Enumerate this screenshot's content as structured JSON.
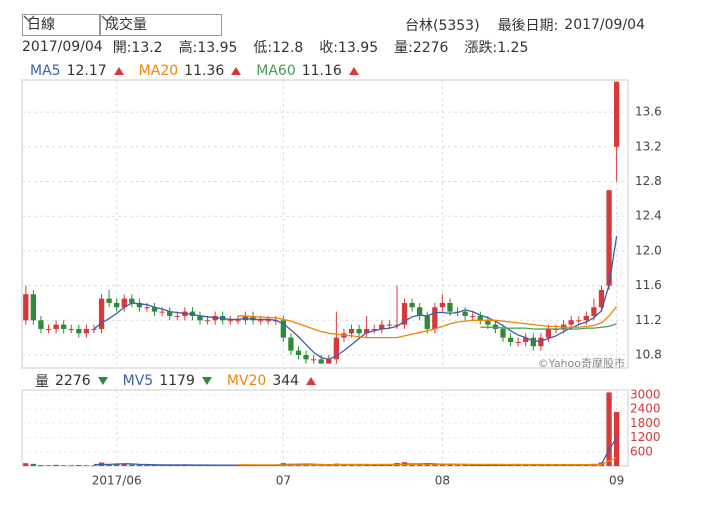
{
  "header": {
    "interval": "日線",
    "indicator": "成交量",
    "stock": "台林(5353)",
    "date_label": "最後日期:",
    "date": "2017/09/04"
  },
  "info": {
    "date": "2017/09/04",
    "items": [
      {
        "label": "開:",
        "value": 13.2
      },
      {
        "label": "高:",
        "value": 13.95
      },
      {
        "label": "低:",
        "value": 12.8
      },
      {
        "label": "收:",
        "value": 13.95
      },
      {
        "label": "量:",
        "value": 2276
      },
      {
        "label": "漲跌:",
        "value": 1.25
      }
    ]
  },
  "chart_data": {
    "type": "candlestick",
    "watermark": "©Yahoo奇摩股市",
    "up_color": "#d9383a",
    "down_color": "#2e8b3a",
    "grid": true,
    "categories": [
      null,
      null,
      null,
      null,
      null,
      null,
      null,
      null,
      null,
      null,
      null,
      null,
      "2017/06",
      null,
      null,
      null,
      null,
      null,
      null,
      null,
      null,
      null,
      null,
      null,
      null,
      null,
      null,
      null,
      null,
      null,
      null,
      null,
      null,
      null,
      "07",
      null,
      null,
      null,
      null,
      null,
      null,
      null,
      null,
      null,
      null,
      null,
      null,
      null,
      null,
      null,
      null,
      null,
      null,
      null,
      null,
      "08",
      null,
      null,
      null,
      null,
      null,
      null,
      null,
      null,
      null,
      null,
      null,
      null,
      null,
      null,
      null,
      null,
      null,
      null,
      null,
      null,
      null,
      null,
      "09"
    ],
    "open": [
      11.2,
      11.5,
      11.2,
      11.1,
      11.1,
      11.15,
      11.1,
      11.1,
      11.05,
      11.1,
      11.1,
      11.45,
      11.4,
      11.35,
      11.45,
      11.4,
      11.35,
      11.35,
      11.3,
      11.3,
      11.25,
      11.25,
      11.3,
      11.25,
      11.2,
      11.2,
      11.25,
      11.2,
      11.2,
      11.2,
      11.25,
      11.2,
      11.2,
      11.2,
      11.2,
      11.0,
      10.85,
      10.8,
      10.75,
      10.75,
      10.7,
      10.75,
      11.0,
      11.05,
      11.1,
      11.05,
      11.1,
      11.1,
      11.15,
      11.15,
      11.15,
      11.4,
      11.35,
      11.25,
      11.1,
      11.35,
      11.4,
      11.3,
      11.3,
      11.25,
      11.25,
      11.2,
      11.15,
      11.1,
      11.0,
      10.95,
      10.95,
      11.0,
      10.9,
      11.0,
      11.1,
      11.1,
      11.15,
      11.2,
      11.2,
      11.25,
      11.35,
      11.6,
      13.2
    ],
    "high": [
      11.6,
      11.55,
      11.25,
      11.15,
      11.2,
      11.2,
      11.15,
      11.15,
      11.15,
      11.15,
      11.5,
      11.55,
      11.45,
      11.5,
      11.5,
      11.45,
      11.4,
      11.4,
      11.35,
      11.35,
      11.3,
      11.35,
      11.35,
      11.3,
      11.25,
      11.3,
      11.3,
      11.25,
      11.25,
      11.3,
      11.3,
      11.25,
      11.25,
      11.25,
      11.25,
      11.05,
      10.9,
      10.85,
      10.8,
      10.8,
      10.8,
      11.3,
      11.1,
      11.15,
      11.15,
      11.25,
      11.15,
      11.2,
      11.2,
      11.6,
      11.45,
      11.45,
      11.4,
      11.3,
      11.4,
      11.5,
      11.45,
      11.35,
      11.35,
      11.3,
      11.3,
      11.25,
      11.2,
      11.15,
      11.05,
      11.0,
      11.05,
      11.05,
      11.05,
      11.15,
      11.15,
      11.2,
      11.25,
      11.25,
      11.3,
      11.45,
      11.6,
      12.7,
      13.95
    ],
    "low": [
      11.15,
      11.15,
      11.05,
      11.05,
      11.05,
      11.05,
      11.05,
      11.0,
      11.0,
      11.05,
      11.05,
      11.35,
      11.3,
      11.3,
      11.35,
      11.3,
      11.3,
      11.25,
      11.25,
      11.2,
      11.2,
      11.2,
      11.2,
      11.15,
      11.15,
      11.15,
      11.15,
      11.15,
      11.15,
      11.15,
      11.15,
      11.15,
      11.15,
      11.15,
      10.95,
      10.8,
      10.75,
      10.7,
      10.7,
      10.7,
      10.7,
      10.7,
      10.95,
      11.0,
      11.0,
      11.0,
      11.05,
      11.05,
      11.1,
      11.1,
      11.1,
      11.3,
      11.2,
      11.05,
      11.05,
      11.3,
      11.25,
      11.25,
      11.2,
      11.2,
      11.15,
      11.1,
      11.05,
      10.95,
      10.9,
      10.9,
      10.9,
      10.85,
      10.85,
      10.95,
      11.05,
      11.05,
      11.1,
      11.15,
      11.15,
      11.2,
      11.3,
      11.55,
      12.8
    ],
    "close": [
      11.5,
      11.2,
      11.1,
      11.1,
      11.15,
      11.1,
      11.1,
      11.05,
      11.1,
      11.1,
      11.45,
      11.4,
      11.35,
      11.45,
      11.4,
      11.35,
      11.35,
      11.3,
      11.3,
      11.25,
      11.25,
      11.3,
      11.25,
      11.2,
      11.2,
      11.25,
      11.2,
      11.2,
      11.2,
      11.25,
      11.2,
      11.2,
      11.2,
      11.2,
      11.0,
      10.85,
      10.8,
      10.75,
      10.75,
      10.7,
      10.75,
      11.0,
      11.05,
      11.1,
      11.05,
      11.1,
      11.1,
      11.15,
      11.15,
      11.15,
      11.4,
      11.35,
      11.25,
      11.1,
      11.35,
      11.4,
      11.3,
      11.3,
      11.25,
      11.25,
      11.2,
      11.15,
      11.1,
      11.0,
      10.95,
      10.95,
      11.0,
      10.9,
      11.0,
      11.1,
      11.1,
      11.15,
      11.2,
      11.2,
      11.25,
      11.35,
      11.55,
      12.7,
      13.95
    ],
    "ma": [
      {
        "name": "MA5",
        "color": "#3b5eab",
        "trend": "up",
        "values": [
          null,
          null,
          null,
          null,
          null,
          null,
          null,
          null,
          null,
          11.1,
          11.17,
          11.22,
          11.28,
          11.35,
          11.4,
          11.39,
          11.38,
          11.35,
          11.33,
          11.3,
          11.29,
          11.28,
          11.27,
          11.25,
          11.24,
          11.23,
          11.22,
          11.21,
          11.21,
          11.22,
          11.21,
          11.21,
          11.21,
          11.2,
          11.16,
          11.09,
          11.01,
          10.92,
          10.83,
          10.77,
          10.75,
          10.79,
          10.85,
          10.92,
          10.99,
          11.06,
          11.08,
          11.1,
          11.11,
          11.13,
          11.19,
          11.24,
          11.26,
          11.25,
          11.29,
          11.29,
          11.28,
          11.29,
          11.32,
          11.3,
          11.26,
          11.23,
          11.19,
          11.14,
          11.08,
          11.03,
          11.0,
          10.96,
          10.96,
          10.99,
          11.02,
          11.07,
          11.11,
          11.15,
          11.18,
          11.23,
          11.31,
          11.61,
          12.17
        ]
      },
      {
        "name": "MA20",
        "color": "#f0850a",
        "trend": "up",
        "values": [
          null,
          null,
          null,
          null,
          null,
          null,
          null,
          null,
          null,
          null,
          null,
          null,
          null,
          null,
          null,
          null,
          null,
          null,
          null,
          null,
          null,
          null,
          null,
          null,
          null,
          null,
          null,
          null,
          11.25,
          11.25,
          11.24,
          11.24,
          11.23,
          11.23,
          11.21,
          11.19,
          11.16,
          11.13,
          11.1,
          11.07,
          11.05,
          11.04,
          11.03,
          11.02,
          11.01,
          11.0,
          11.0,
          11.0,
          11.0,
          11.0,
          11.02,
          11.04,
          11.06,
          11.08,
          11.1,
          11.13,
          11.16,
          11.18,
          11.19,
          11.2,
          11.2,
          11.2,
          11.2,
          11.19,
          11.18,
          11.17,
          11.16,
          11.15,
          11.14,
          11.13,
          11.13,
          11.12,
          11.12,
          11.12,
          11.13,
          11.14,
          11.17,
          11.25,
          11.36
        ]
      },
      {
        "name": "MA60",
        "color": "#4a9a5a",
        "trend": "up",
        "values": [
          null,
          null,
          null,
          null,
          null,
          null,
          null,
          null,
          null,
          null,
          null,
          null,
          null,
          null,
          null,
          null,
          null,
          null,
          null,
          null,
          null,
          null,
          null,
          null,
          null,
          null,
          null,
          null,
          null,
          null,
          null,
          null,
          null,
          null,
          null,
          null,
          null,
          null,
          null,
          null,
          null,
          null,
          null,
          null,
          null,
          null,
          null,
          null,
          null,
          null,
          null,
          null,
          null,
          null,
          null,
          null,
          null,
          null,
          null,
          null,
          11.12,
          11.12,
          11.12,
          11.11,
          11.11,
          11.11,
          11.11,
          11.1,
          11.1,
          11.1,
          11.1,
          11.1,
          11.1,
          11.1,
          11.11,
          11.11,
          11.12,
          11.13,
          11.16
        ]
      }
    ],
    "ylim": [
      10.65,
      13.97
    ],
    "yticks": [
      10.8,
      11.2,
      11.6,
      {
        "value": 12,
        "label": "12.0"
      },
      12.4,
      12.8,
      13.2,
      13.6
    ],
    "volume": {
      "type": "bar",
      "name": "量",
      "trend": "down",
      "values": [
        120,
        90,
        40,
        30,
        50,
        30,
        30,
        40,
        30,
        30,
        150,
        80,
        90,
        70,
        60,
        50,
        40,
        40,
        50,
        40,
        50,
        40,
        30,
        40,
        30,
        40,
        30,
        30,
        40,
        40,
        30,
        30,
        40,
        30,
        120,
        90,
        70,
        60,
        40,
        50,
        40,
        100,
        60,
        50,
        40,
        60,
        40,
        50,
        40,
        130,
        160,
        70,
        60,
        80,
        90,
        70,
        60,
        40,
        40,
        30,
        40,
        50,
        60,
        70,
        60,
        50,
        40,
        60,
        50,
        60,
        40,
        50,
        50,
        40,
        50,
        90,
        150,
        3100,
        2276
      ],
      "series": [
        {
          "name": "MV5",
          "color": "#3b5eab",
          "trend": "down",
          "values": [
            null,
            null,
            null,
            null,
            null,
            null,
            null,
            null,
            null,
            60,
            60,
            70,
            85,
            95,
            90,
            70,
            60,
            50,
            45,
            45,
            45,
            45,
            40,
            40,
            40,
            35,
            35,
            35,
            35,
            35,
            35,
            35,
            35,
            35,
            55,
            65,
            75,
            80,
            75,
            60,
            50,
            60,
            60,
            60,
            60,
            60,
            50,
            50,
            50,
            65,
            85,
            90,
            90,
            100,
            90,
            75,
            75,
            70,
            60,
            50,
            40,
            40,
            45,
            55,
            55,
            60,
            55,
            55,
            50,
            50,
            50,
            50,
            50,
            50,
            50,
            55,
            75,
            686,
            1179
          ]
        },
        {
          "name": "MV20",
          "color": "#f0850a",
          "trend": "up",
          "values": [
            null,
            null,
            null,
            null,
            null,
            null,
            null,
            null,
            null,
            null,
            null,
            null,
            null,
            null,
            null,
            null,
            null,
            null,
            null,
            null,
            null,
            null,
            null,
            null,
            null,
            null,
            null,
            null,
            50,
            49,
            48,
            47,
            46,
            46,
            48,
            50,
            52,
            54,
            55,
            56,
            57,
            59,
            60,
            61,
            62,
            63,
            64,
            65,
            66,
            68,
            70,
            71,
            72,
            73,
            74,
            74,
            73,
            72,
            71,
            70,
            68,
            67,
            66,
            65,
            64,
            63,
            62,
            61,
            60,
            60,
            59,
            58,
            58,
            58,
            59,
            62,
            66,
            210,
            344
          ]
        }
      ],
      "ylim": [
        0,
        3200
      ],
      "yticks": [
        600,
        1200,
        1800,
        2400,
        3000
      ]
    }
  }
}
